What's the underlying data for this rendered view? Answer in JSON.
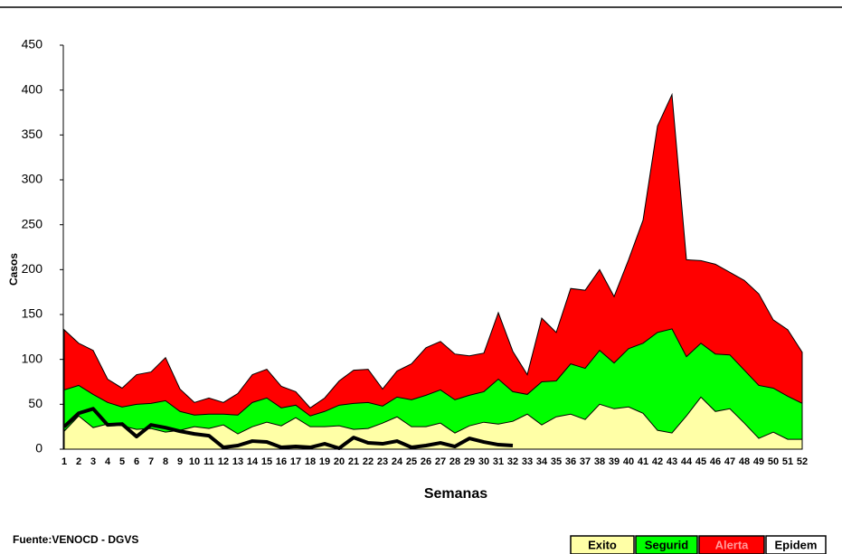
{
  "chart_data": {
    "type": "area",
    "y_label": "Casos",
    "x_label": "Semanas",
    "source": "Fuente:VENOCD - DGVS",
    "categories": [
      "1",
      "2",
      "3",
      "4",
      "5",
      "6",
      "7",
      "8",
      "9",
      "10",
      "11",
      "12",
      "13",
      "14",
      "15",
      "16",
      "17",
      "18",
      "19",
      "20",
      "21",
      "22",
      "23",
      "24",
      "25",
      "26",
      "27",
      "28",
      "29",
      "30",
      "31",
      "32",
      "33",
      "34",
      "35",
      "36",
      "37",
      "38",
      "39",
      "40",
      "41",
      "42",
      "43",
      "44",
      "45",
      "46",
      "47",
      "48",
      "49",
      "50",
      "51",
      "52"
    ],
    "ylim": [
      0,
      450
    ],
    "yticks": [
      0,
      50,
      100,
      150,
      200,
      250,
      300,
      350,
      400,
      450
    ],
    "series": [
      {
        "name": "Exito",
        "color": "#ffffa6",
        "type": "area",
        "values": [
          20,
          37,
          24,
          28,
          26,
          22,
          23,
          19,
          21,
          25,
          23,
          27,
          17,
          25,
          30,
          26,
          35,
          25,
          25,
          26,
          22,
          23,
          29,
          36,
          25,
          25,
          29,
          18,
          26,
          30,
          28,
          31,
          39,
          27,
          36,
          39,
          33,
          50,
          45,
          47,
          40,
          21,
          18,
          37,
          58,
          42,
          45,
          29,
          12,
          19,
          11,
          11
        ]
      },
      {
        "name": "Segurid",
        "color": "#00ff00",
        "type": "area",
        "values": [
          66,
          71,
          61,
          52,
          47,
          50,
          51,
          54,
          42,
          38,
          39,
          39,
          38,
          52,
          57,
          46,
          49,
          37,
          42,
          49,
          51,
          52,
          48,
          58,
          55,
          60,
          66,
          55,
          60,
          64,
          78,
          64,
          61,
          75,
          76,
          95,
          90,
          110,
          96,
          112,
          118,
          130,
          134,
          103,
          118,
          106,
          105,
          88,
          71,
          68,
          59,
          51
        ]
      },
      {
        "name": "Alerta",
        "color": "#ff0000",
        "type": "area",
        "values": [
          133,
          118,
          110,
          78,
          68,
          83,
          86,
          102,
          67,
          52,
          57,
          52,
          62,
          83,
          89,
          70,
          64,
          46,
          57,
          76,
          88,
          89,
          67,
          87,
          95,
          113,
          120,
          106,
          104,
          107,
          152,
          109,
          83,
          146,
          130,
          179,
          177,
          200,
          170,
          211,
          255,
          360,
          395,
          211,
          210,
          206,
          197,
          188,
          173,
          144,
          133,
          108
        ]
      },
      {
        "name": "Epidem",
        "color": "#000000",
        "type": "line",
        "values": [
          25,
          40,
          45,
          27,
          28,
          14,
          27,
          24,
          20,
          17,
          15,
          2,
          4,
          9,
          8,
          2,
          3,
          2,
          6,
          1,
          13,
          7,
          6,
          9,
          2,
          4,
          7,
          3,
          12,
          8,
          5,
          4,
          null,
          null,
          null,
          null,
          null,
          null,
          null,
          null,
          null,
          null,
          null,
          null,
          null,
          null,
          null,
          null,
          null,
          null,
          null,
          null
        ]
      }
    ]
  }
}
